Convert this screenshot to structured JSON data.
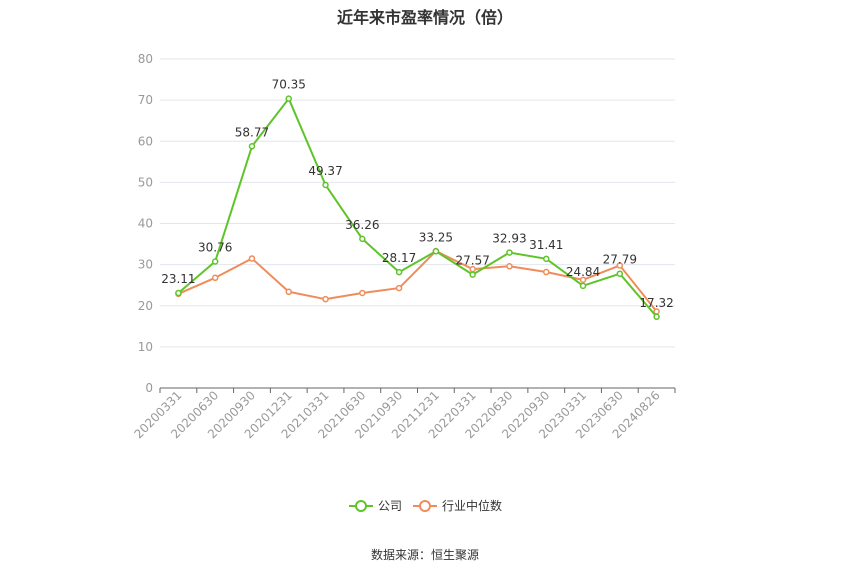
{
  "chart_data": {
    "type": "line",
    "title": "近年来市盈率情况（倍）",
    "source": "数据来源：恒生聚源",
    "xlabel": "",
    "ylabel": "",
    "ylim": [
      0,
      80
    ],
    "yticks": [
      0,
      10,
      20,
      30,
      40,
      50,
      60,
      70,
      80
    ],
    "grid": true,
    "legend_position": "bottom",
    "categories": [
      "20200331",
      "20200630",
      "20200930",
      "20201231",
      "20210331",
      "20210630",
      "20210930",
      "20211231",
      "20220331",
      "20220630",
      "20220930",
      "20230331",
      "20230630",
      "20240826"
    ],
    "series": [
      {
        "name": "公司",
        "color": "#5ec42a",
        "values": [
          23.11,
          30.76,
          58.77,
          70.35,
          49.37,
          36.26,
          28.17,
          33.25,
          27.57,
          32.93,
          31.41,
          24.84,
          27.79,
          17.32
        ],
        "labels": [
          "23.11",
          "30.76",
          "58.77",
          "70.35",
          "49.37",
          "36.26",
          "28.17",
          "33.25",
          "27.57",
          "32.93",
          "31.41",
          "24.84",
          "27.79",
          "17.32"
        ]
      },
      {
        "name": "行业中位数",
        "color": "#f08c5a",
        "values": [
          22.9,
          26.8,
          31.5,
          23.4,
          21.6,
          23.1,
          24.3,
          33.3,
          28.9,
          29.6,
          28.2,
          26.3,
          29.8,
          18.6
        ]
      }
    ]
  }
}
